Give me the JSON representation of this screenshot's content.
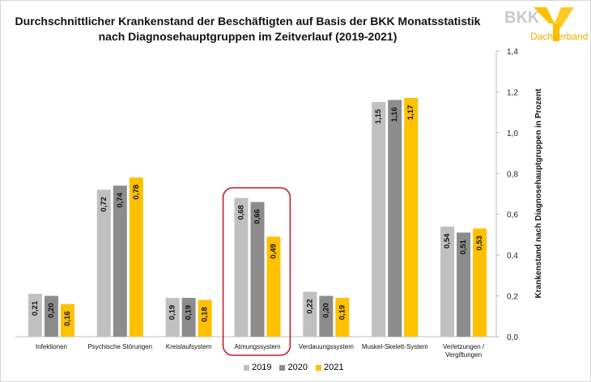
{
  "title_line1": "Durchschnittlicher Krankenstand der Beschäftigten auf Basis der BKK Monatsstatistik",
  "title_line2": "nach Diagnosehauptgruppen im Zeitverlauf (2019-2021)",
  "logo": {
    "text": "BKK",
    "subtext": "Dachverband"
  },
  "colors": {
    "s2019": "#c0c0c0",
    "s2020": "#8c8c8c",
    "s2021": "#ffc000",
    "highlight": "#c0202a"
  },
  "chart_data": {
    "type": "bar",
    "title": "Durchschnittlicher Krankenstand der Beschäftigten auf Basis der BKK Monatsstatistik nach Diagnosehauptgruppen im Zeitverlauf (2019-2021)",
    "xlabel": "",
    "ylabel": "Krankenstand nach Diagnosehauptgruppen in Prozent",
    "ylim": [
      0,
      1.4
    ],
    "yticks": [
      "0,0",
      "0,2",
      "0,4",
      "0,6",
      "0,8",
      "1,0",
      "1,2",
      "1,4"
    ],
    "y_axis_position": "right",
    "legend_position": "bottom",
    "categories": [
      "Infektionen",
      "Psychische Störungen",
      "Kreislaufsystem",
      "Atmungssystem",
      "Verdauungssystem",
      "Muskel-Skelett-System",
      "Verletzungen / Vergiftungen"
    ],
    "series": [
      {
        "name": "2019",
        "values": [
          0.21,
          0.72,
          0.19,
          0.68,
          0.22,
          1.15,
          0.54
        ],
        "labels": [
          "0,21",
          "0,72",
          "0,19",
          "0,68",
          "0,22",
          "1,15",
          "0,54"
        ]
      },
      {
        "name": "2020",
        "values": [
          0.2,
          0.74,
          0.19,
          0.66,
          0.2,
          1.16,
          0.51
        ],
        "labels": [
          "0,20",
          "0,74",
          "0,19",
          "0,66",
          "0,20",
          "1,16",
          "0,51"
        ]
      },
      {
        "name": "2021",
        "values": [
          0.16,
          0.78,
          0.18,
          0.49,
          0.19,
          1.17,
          0.53
        ],
        "labels": [
          "0,16",
          "0,78",
          "0,18",
          "0,49",
          "0,19",
          "1,17",
          "0,53"
        ]
      }
    ],
    "highlighted_category": "Atmungssystem"
  }
}
